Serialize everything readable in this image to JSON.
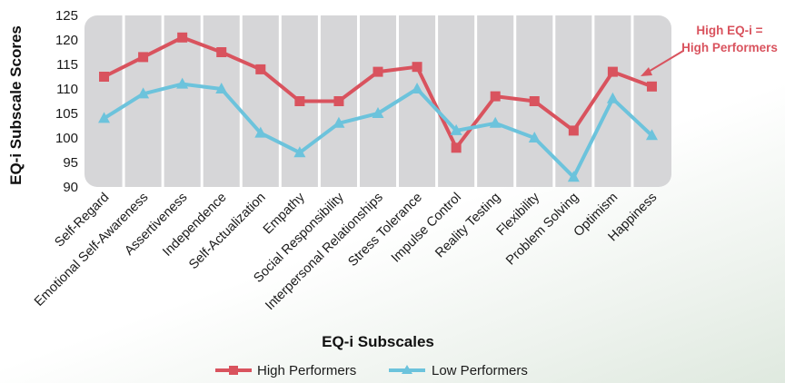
{
  "chart_data": {
    "type": "line",
    "categories": [
      "Self-Regard",
      "Emotional Self-Awareness",
      "Assertiveness",
      "Independence",
      "Self-Actualization",
      "Empathy",
      "Social Responsibility",
      "Interpersonal Relationships",
      "Stress Tolerance",
      "Impulse Control",
      "Reality Testing",
      "Flexibility",
      "Problem Solving",
      "Optimism",
      "Happiness"
    ],
    "series": [
      {
        "name": "High Performers",
        "color": "#d9535e",
        "marker": "square",
        "values": [
          112.5,
          116.5,
          120.5,
          117.5,
          114,
          107.5,
          107.5,
          113.5,
          114.5,
          98,
          108.5,
          107.5,
          101.5,
          113.5,
          110.5
        ]
      },
      {
        "name": "Low Performers",
        "color": "#6cc3dc",
        "marker": "triangle",
        "values": [
          104,
          109,
          111,
          110,
          101,
          97,
          103,
          105,
          110,
          101.5,
          103,
          100,
          92,
          108,
          100.5
        ]
      }
    ],
    "xlabel": "EQ-i Subscales",
    "ylabel": "EQ-i Subscale Scores",
    "ylim": [
      90,
      125
    ],
    "yticks": [
      90,
      95,
      100,
      105,
      110,
      115,
      120,
      125
    ],
    "grid": "vertical",
    "legend": "bottom",
    "annotation": {
      "line1": "High EQ-i =",
      "line2": "High Performers",
      "color": "#d9535e"
    }
  }
}
